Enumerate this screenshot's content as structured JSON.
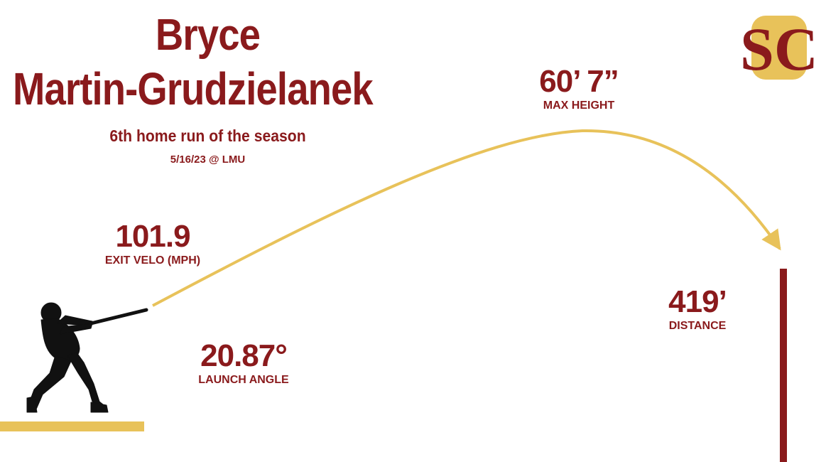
{
  "player": {
    "first_name": "Bryce",
    "last_name": "Martin-Grudzielanek"
  },
  "subtitle": "6th home run of the season",
  "date_line": "5/16/23 @ LMU",
  "stats": {
    "exit_velo": {
      "value": "101.9",
      "label": "EXIT VELO (MPH)"
    },
    "launch_angle": {
      "value": "20.87°",
      "label": "LAUNCH ANGLE"
    },
    "max_height": {
      "value": "60’ 7”",
      "label": "MAX HEIGHT"
    },
    "distance": {
      "value": "419’",
      "label": "DISTANCE"
    }
  },
  "colors": {
    "crimson": "#8a1a1c",
    "gold": "#e8c25a",
    "silhouette": "#111111"
  },
  "logo": {
    "text": "SC",
    "icon": "usc-interlock-logo"
  }
}
